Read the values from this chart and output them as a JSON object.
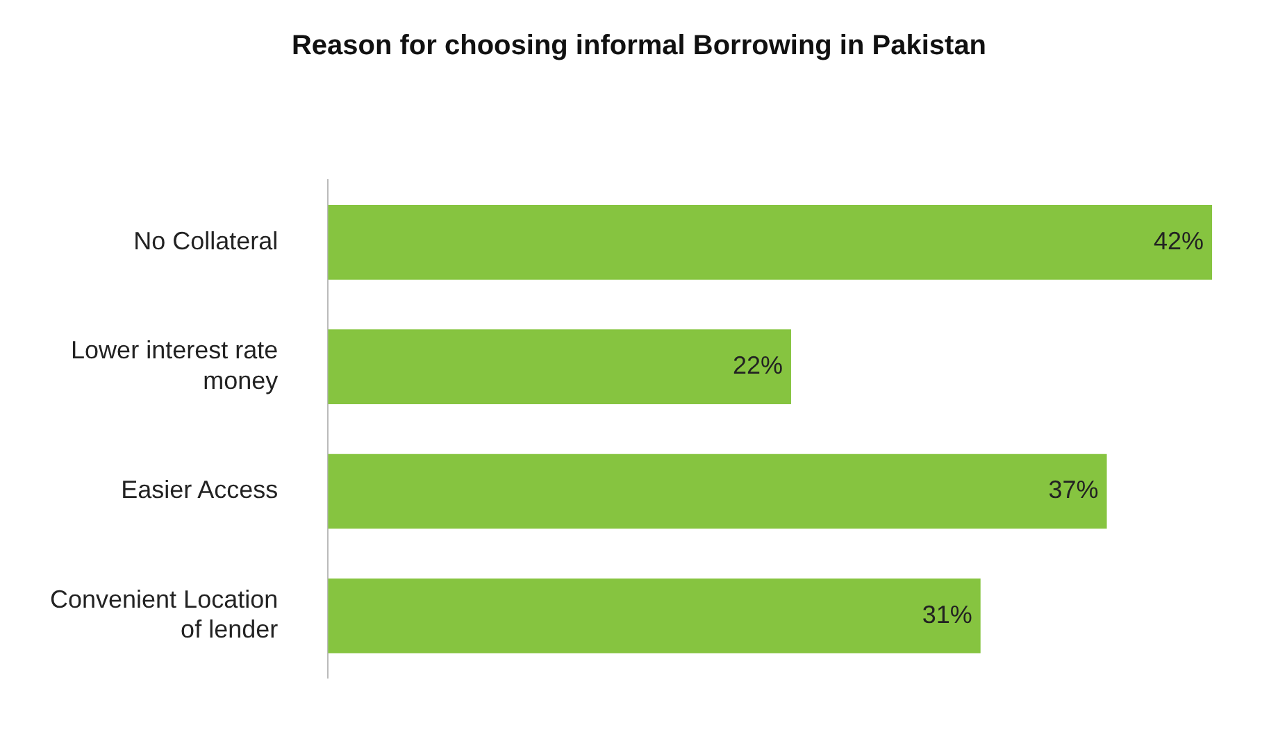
{
  "chart_data": {
    "type": "bar",
    "orientation": "horizontal",
    "title": "Reason for choosing informal Borrowing in Pakistan",
    "categories": [
      "No Collateral",
      "Lower interest rate money",
      "Easier Access",
      "Convenient Location of lender"
    ],
    "values": [
      42,
      22,
      37,
      31
    ],
    "value_labels": [
      "42%",
      "22%",
      "37%",
      "31%"
    ],
    "color": "#86c440",
    "legend": false
  }
}
